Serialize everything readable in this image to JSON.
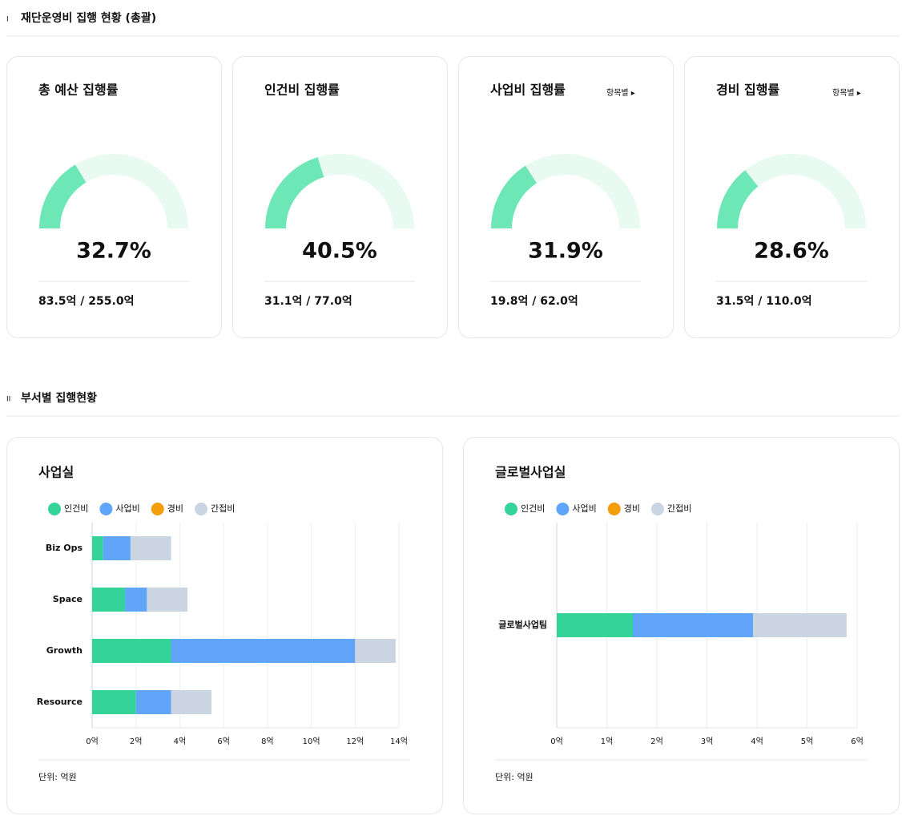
{
  "sections": [
    {
      "marker": "I",
      "title": "재단운영비 집행 현황 (총괄)"
    },
    {
      "marker": "II",
      "title": "부서별 집행현황"
    }
  ],
  "chart_data": [
    {
      "type": "gauge",
      "title": "총 예산 집행률",
      "value": 32.7,
      "value_label": "32.7%",
      "ylim": [
        0,
        100
      ],
      "footnote": "83.5억 / 255.0억"
    },
    {
      "type": "gauge",
      "title": "인건비 집행률",
      "value": 40.5,
      "value_label": "40.5%",
      "ylim": [
        0,
        100
      ],
      "footnote": "31.1억 / 77.0억"
    },
    {
      "type": "gauge",
      "title": "사업비 집행률",
      "value": 31.9,
      "value_label": "31.9%",
      "ylim": [
        0,
        100
      ],
      "footnote": "19.8억 / 62.0억",
      "link": "항목별 ▸"
    },
    {
      "type": "gauge",
      "title": "경비 집행률",
      "value": 28.6,
      "value_label": "28.6%",
      "ylim": [
        0,
        100
      ],
      "footnote": "31.5억 / 110.0억",
      "link": "항목별 ▸"
    },
    {
      "type": "bar",
      "title": "사업실",
      "categories": [
        "Biz Ops",
        "Space",
        "Growth",
        "Resource"
      ],
      "series": [
        {
          "name": "인건비",
          "color": "#34d399",
          "values": [
            0.5,
            1.5,
            3.6,
            2.0
          ]
        },
        {
          "name": "사업비",
          "color": "#60a5fa",
          "values": [
            1.25,
            1.0,
            8.4,
            1.6
          ]
        },
        {
          "name": "경비",
          "color": "#f59e0b",
          "values": [
            0,
            0,
            0,
            0
          ]
        },
        {
          "name": "간접비",
          "color": "#cbd5e1",
          "values": [
            1.85,
            1.85,
            1.85,
            1.85
          ]
        }
      ],
      "xlim": [
        0,
        14
      ],
      "xticks": [
        {
          "value": 0,
          "label": "0억"
        },
        {
          "value": 2,
          "label": "2억"
        },
        {
          "value": 4,
          "label": "4억"
        },
        {
          "value": 6,
          "label": "6억"
        },
        {
          "value": 8,
          "label": "8억"
        },
        {
          "value": 10,
          "label": "10억"
        },
        {
          "value": 12,
          "label": "12억"
        },
        {
          "value": 14,
          "label": "14억"
        }
      ],
      "grid": true,
      "footnote": "단위: 억원"
    },
    {
      "type": "bar",
      "title": "글로벌사업실",
      "categories": [
        "글로벌사업팀"
      ],
      "series": [
        {
          "name": "인건비",
          "color": "#34d399",
          "values": [
            1.52
          ]
        },
        {
          "name": "사업비",
          "color": "#60a5fa",
          "values": [
            2.4
          ]
        },
        {
          "name": "경비",
          "color": "#f59e0b",
          "values": [
            0
          ]
        },
        {
          "name": "간접비",
          "color": "#cbd5e1",
          "values": [
            1.87
          ]
        }
      ],
      "xlim": [
        0,
        6
      ],
      "xticks": [
        {
          "value": 0,
          "label": "0억"
        },
        {
          "value": 1,
          "label": "1억"
        },
        {
          "value": 2,
          "label": "2억"
        },
        {
          "value": 3,
          "label": "3억"
        },
        {
          "value": 4,
          "label": "4억"
        },
        {
          "value": 5,
          "label": "5억"
        },
        {
          "value": 6,
          "label": "6억"
        }
      ],
      "grid": true,
      "footnote": "단위: 억원"
    }
  ]
}
